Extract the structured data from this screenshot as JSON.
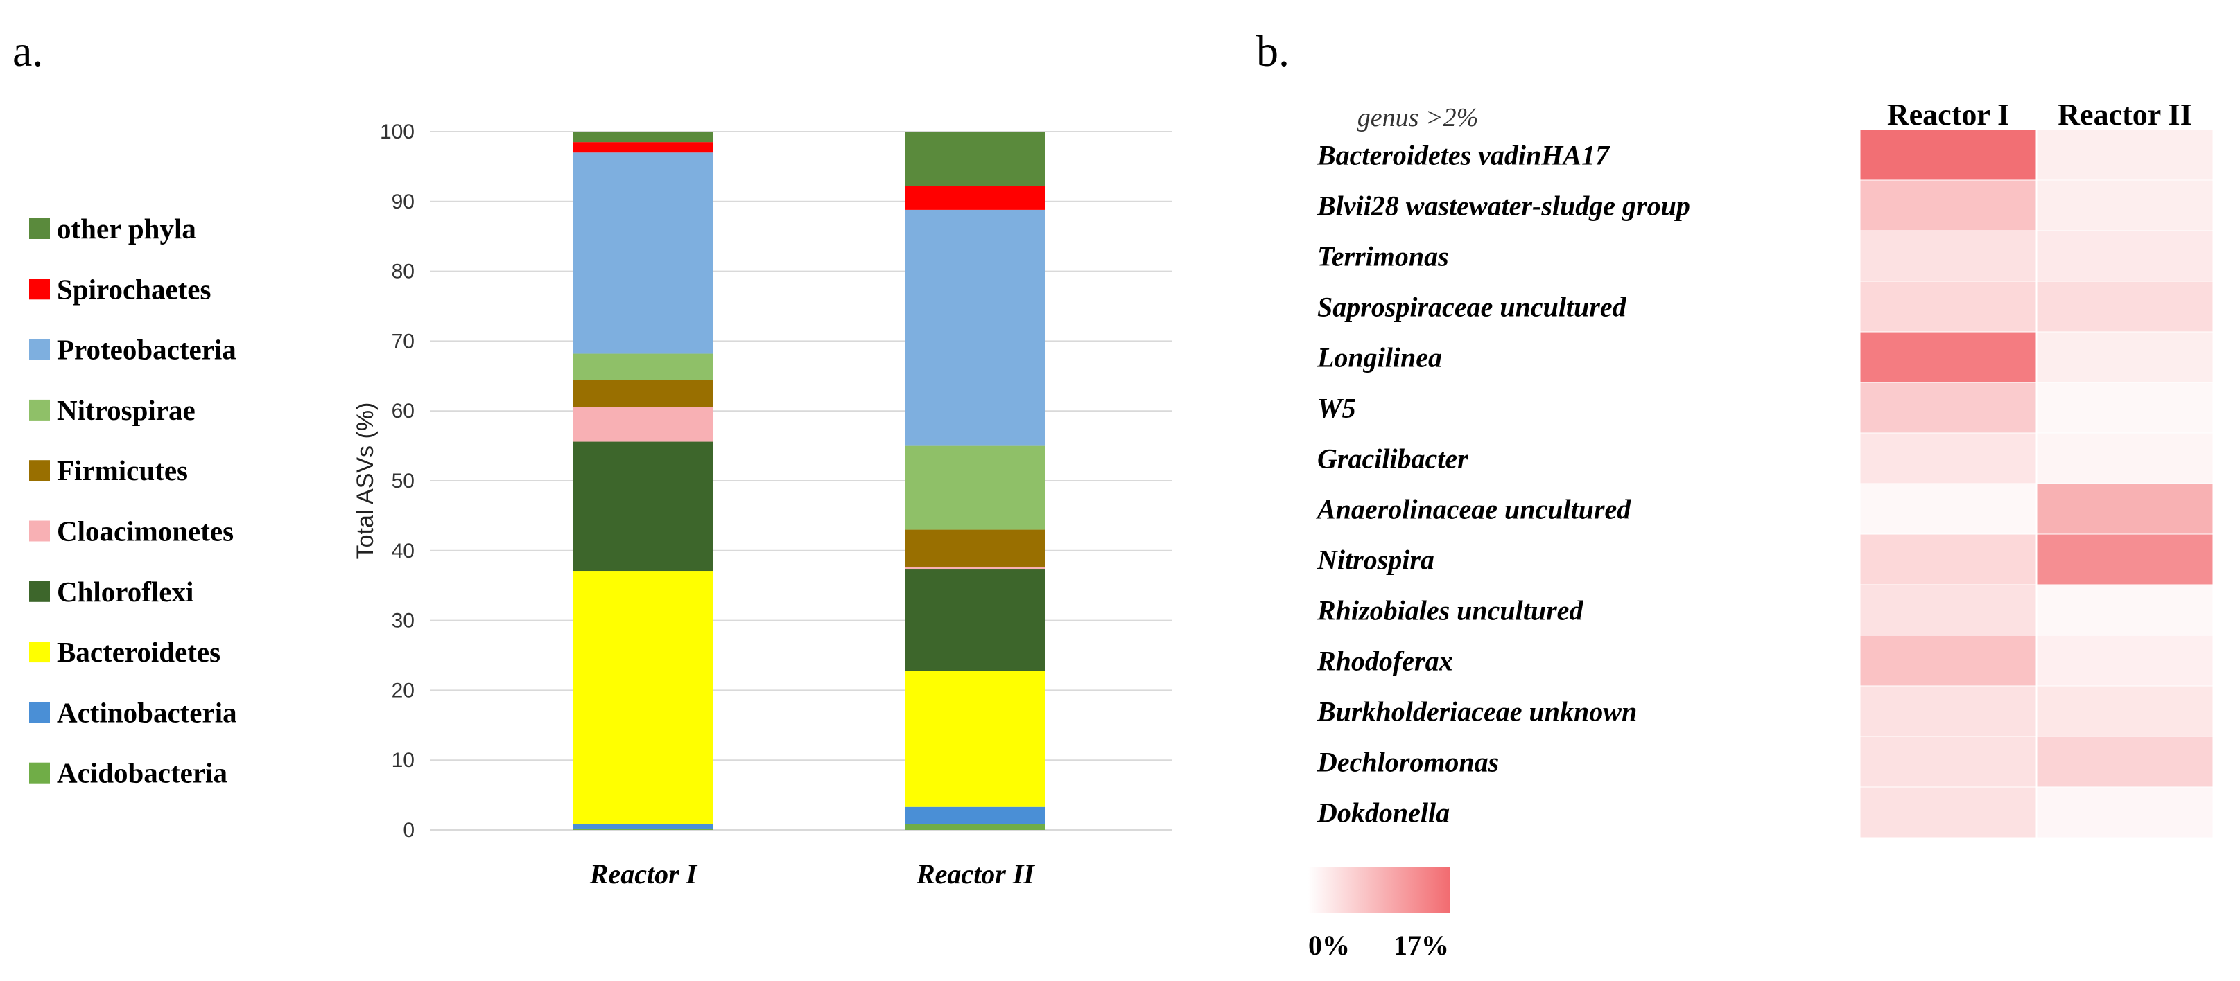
{
  "panels": {
    "a": "a.",
    "b": "b."
  },
  "colors": {
    "other phyla": "#5a8a3c",
    "Spirochaetes": "#ff0000",
    "Proteobacteria": "#7eafdf",
    "Nitrospirae": "#8fc068",
    "Firmicutes": "#996f00",
    "Cloacimonetes": "#f8b0b4",
    "Chloroflexi": "#3d662b",
    "Bacteroidetes": "#ffff00",
    "Actinobacteria": "#4a8fd6",
    "Acidobacteria": "#70ad47",
    "heat_max": "#f26b70",
    "heat_min": "#ffffff"
  },
  "chart_data": [
    {
      "type": "bar",
      "stacked": true,
      "title": "",
      "xlabel": "",
      "ylabel": "Total ASVs (%)",
      "ylim": [
        0,
        100
      ],
      "yticks": [
        0,
        10,
        20,
        30,
        40,
        50,
        60,
        70,
        80,
        90,
        100
      ],
      "grid": true,
      "legend_position": "left",
      "categories": [
        "Reactor I",
        "Reactor II"
      ],
      "legend": [
        "other phyla",
        "Spirochaetes",
        "Proteobacteria",
        "Nitrospirae",
        "Firmicutes",
        "Cloacimonetes",
        "Chloroflexi",
        "Bacteroidetes",
        "Actinobacteria",
        "Acidobacteria"
      ],
      "series": [
        {
          "name": "Acidobacteria",
          "values": [
            0.2,
            0.8
          ]
        },
        {
          "name": "Actinobacteria",
          "values": [
            0.6,
            2.5
          ]
        },
        {
          "name": "Bacteroidetes",
          "values": [
            36.3,
            19.5
          ]
        },
        {
          "name": "Chloroflexi",
          "values": [
            18.5,
            14.5
          ]
        },
        {
          "name": "Cloacimonetes",
          "values": [
            5.0,
            0.4
          ]
        },
        {
          "name": "Firmicutes",
          "values": [
            3.8,
            5.3
          ]
        },
        {
          "name": "Nitrospirae",
          "values": [
            3.8,
            12.0
          ]
        },
        {
          "name": "Proteobacteria",
          "values": [
            28.8,
            33.8
          ]
        },
        {
          "name": "Spirochaetes",
          "values": [
            1.5,
            3.4
          ]
        },
        {
          "name": "other phyla",
          "values": [
            1.5,
            7.8
          ]
        }
      ]
    },
    {
      "type": "heatmap",
      "title": "genus >2%",
      "columns": [
        "Reactor I",
        "Reactor II"
      ],
      "rows": [
        "Bacteroidetes vadinHA17",
        "Blvii28 wastewater-sludge group",
        "Terrimonas",
        "Saprospiraceae uncultured",
        "Longilinea",
        "W5",
        "Gracilibacter",
        "Anaerolinaceae uncultured",
        "Nitrospira",
        "Rhizobiales uncultured",
        "Rhodoferax",
        "Burkholderiaceae unknown",
        "Dechloromonas",
        "Dokdonella"
      ],
      "values": [
        [
          16.5,
          2.0
        ],
        [
          7.0,
          2.0
        ],
        [
          3.5,
          2.5
        ],
        [
          4.5,
          4.0
        ],
        [
          15.0,
          2.0
        ],
        [
          6.0,
          0.8
        ],
        [
          3.0,
          1.2
        ],
        [
          0.8,
          9.0
        ],
        [
          4.5,
          13.0
        ],
        [
          3.5,
          0.8
        ],
        [
          7.0,
          1.8
        ],
        [
          3.5,
          2.8
        ],
        [
          3.5,
          5.0
        ],
        [
          3.5,
          1.0
        ]
      ],
      "scale": {
        "min": 0,
        "max": 17,
        "min_label": "0%",
        "max_label": "17%"
      }
    }
  ]
}
